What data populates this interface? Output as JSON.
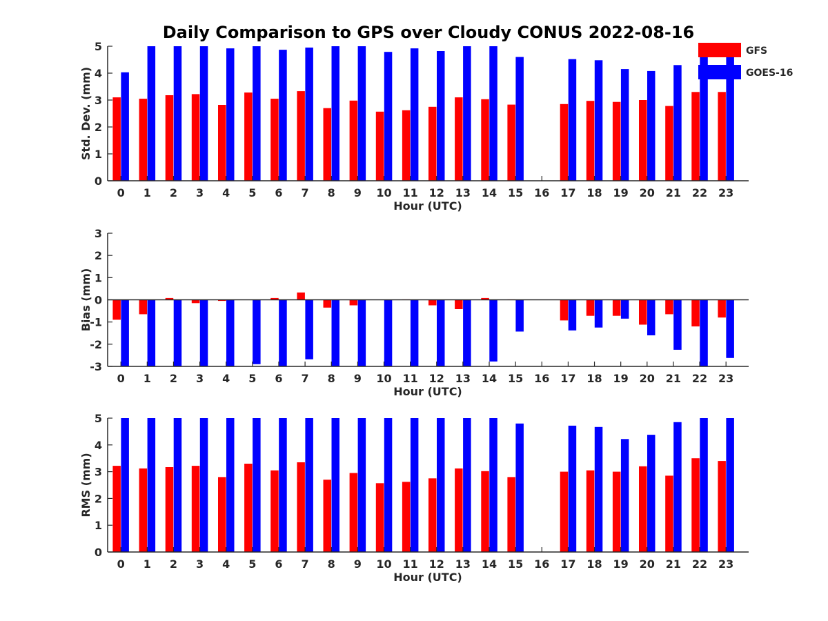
{
  "figure_title": "Daily Comparison to GPS over Cloudy CONUS 2022-08-16",
  "legend": [
    {
      "name": "GFS",
      "color": "#ff0000"
    },
    {
      "name": "GOES-16",
      "color": "#0000ff"
    }
  ],
  "chart_data": [
    {
      "type": "bar",
      "title": "Daily Comparison to GPS over Cloudy CONUS 2022-08-16",
      "xlabel": "Hour (UTC)",
      "ylabel": "Std. Dev. (mm)",
      "categories": [
        "0",
        "1",
        "2",
        "3",
        "4",
        "5",
        "6",
        "7",
        "8",
        "9",
        "10",
        "11",
        "12",
        "13",
        "14",
        "15",
        "16",
        "17",
        "18",
        "19",
        "20",
        "21",
        "22",
        "23"
      ],
      "ylim": [
        0,
        5
      ],
      "yticks": [
        "0",
        "1",
        "2",
        "3",
        "4",
        "5"
      ],
      "grid": false,
      "series": [
        {
          "name": "GFS",
          "color": "#ff0000",
          "values": [
            3.1,
            3.05,
            3.18,
            3.22,
            2.82,
            3.28,
            3.05,
            3.33,
            2.7,
            2.98,
            2.57,
            2.62,
            2.75,
            3.1,
            3.03,
            2.83,
            null,
            2.85,
            2.97,
            2.93,
            3.0,
            2.78,
            3.3,
            3.3
          ]
        },
        {
          "name": "GOES-16",
          "color": "#0000ff",
          "values": [
            4.03,
            5.0,
            5.0,
            5.0,
            4.92,
            5.0,
            4.87,
            4.95,
            5.0,
            5.0,
            4.79,
            4.92,
            4.82,
            5.0,
            5.0,
            4.6,
            null,
            4.52,
            4.48,
            4.15,
            4.08,
            4.3,
            4.65,
            4.65
          ]
        }
      ]
    },
    {
      "type": "bar",
      "xlabel": "Hour (UTC)",
      "ylabel": "Bias (mm)",
      "categories": [
        "0",
        "1",
        "2",
        "3",
        "4",
        "5",
        "6",
        "7",
        "8",
        "9",
        "10",
        "11",
        "12",
        "13",
        "14",
        "15",
        "16",
        "17",
        "18",
        "19",
        "20",
        "21",
        "22",
        "23"
      ],
      "ylim": [
        -3,
        3
      ],
      "yticks": [
        "-3",
        "-2",
        "-1",
        "0",
        "1",
        "2",
        "3"
      ],
      "grid": false,
      "series": [
        {
          "name": "GFS",
          "color": "#ff0000",
          "values": [
            -0.9,
            -0.65,
            0.08,
            -0.15,
            -0.05,
            0.0,
            0.08,
            0.33,
            -0.35,
            -0.25,
            0.0,
            0.02,
            -0.25,
            -0.42,
            0.08,
            0.02,
            null,
            -0.93,
            -0.72,
            -0.72,
            -1.12,
            -0.65,
            -1.2,
            -0.8
          ]
        },
        {
          "name": "GOES-16",
          "color": "#0000ff",
          "values": [
            -3.0,
            -3.0,
            -3.0,
            -3.0,
            -3.0,
            -2.9,
            -3.0,
            -2.68,
            -3.0,
            -3.0,
            -3.0,
            -3.0,
            -3.0,
            -3.0,
            -2.78,
            -1.43,
            null,
            -1.38,
            -1.25,
            -0.85,
            -1.6,
            -2.25,
            -3.0,
            -2.62
          ]
        }
      ]
    },
    {
      "type": "bar",
      "xlabel": "Hour (UTC)",
      "ylabel": "RMS (mm)",
      "categories": [
        "0",
        "1",
        "2",
        "3",
        "4",
        "5",
        "6",
        "7",
        "8",
        "9",
        "10",
        "11",
        "12",
        "13",
        "14",
        "15",
        "16",
        "17",
        "18",
        "19",
        "20",
        "21",
        "22",
        "23"
      ],
      "ylim": [
        0,
        5
      ],
      "yticks": [
        "0",
        "1",
        "2",
        "3",
        "4",
        "5"
      ],
      "grid": false,
      "series": [
        {
          "name": "GFS",
          "color": "#ff0000",
          "values": [
            3.22,
            3.12,
            3.17,
            3.22,
            2.8,
            3.3,
            3.05,
            3.35,
            2.7,
            2.95,
            2.57,
            2.62,
            2.75,
            3.12,
            3.02,
            2.8,
            null,
            3.0,
            3.05,
            3.0,
            3.2,
            2.85,
            3.5,
            3.4
          ]
        },
        {
          "name": "GOES-16",
          "color": "#0000ff",
          "values": [
            5.0,
            5.0,
            5.0,
            5.0,
            5.0,
            5.0,
            5.0,
            5.0,
            5.0,
            5.0,
            5.0,
            5.0,
            5.0,
            5.0,
            5.0,
            4.8,
            null,
            4.72,
            4.67,
            4.22,
            4.38,
            4.85,
            5.0,
            5.0
          ]
        }
      ]
    }
  ]
}
